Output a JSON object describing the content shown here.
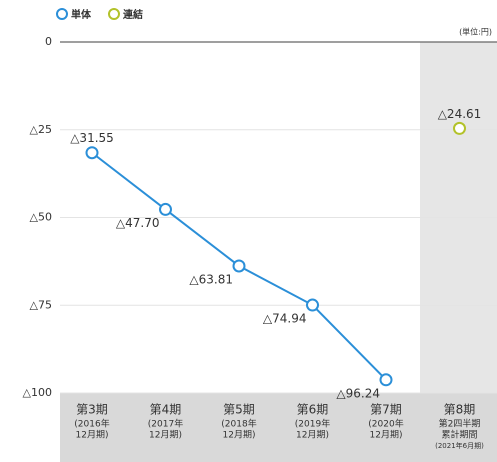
{
  "chart_data": {
    "type": "line",
    "unit_label": "(単位:円)",
    "categories": [
      "第3期",
      "第4期",
      "第5期",
      "第6期",
      "第7期",
      "第8期"
    ],
    "category_periods": [
      [
        "(2016年",
        "12月期)"
      ],
      [
        "(2017年",
        "12月期)"
      ],
      [
        "(2018年",
        "12月期)"
      ],
      [
        "(2019年",
        "12月期)"
      ],
      [
        "(2020年",
        "12月期)"
      ],
      [
        "第2四半期",
        "累計期間",
        "(2021年6月期)"
      ]
    ],
    "series": [
      {
        "name": "単体",
        "color": "#2b8fd8",
        "values": [
          -31.55,
          -47.7,
          -63.81,
          -74.94,
          -96.24,
          null
        ],
        "value_labels": [
          "△31.55",
          "△47.70",
          "△63.81",
          "△74.94",
          "△96.24",
          null
        ]
      },
      {
        "name": "連結",
        "color": "#b3c22a",
        "values": [
          null,
          null,
          null,
          null,
          null,
          -24.61
        ],
        "value_labels": [
          null,
          null,
          null,
          null,
          null,
          "△24.61"
        ]
      }
    ],
    "ylim": [
      -100,
      0
    ],
    "yticks": [
      0,
      {
        "value": -25,
        "label": "△25"
      },
      {
        "value": -50,
        "label": "△50"
      },
      {
        "value": -75,
        "label": "△75"
      },
      {
        "value": -100,
        "label": "△100"
      }
    ],
    "grid": true,
    "legend": "top-left"
  }
}
